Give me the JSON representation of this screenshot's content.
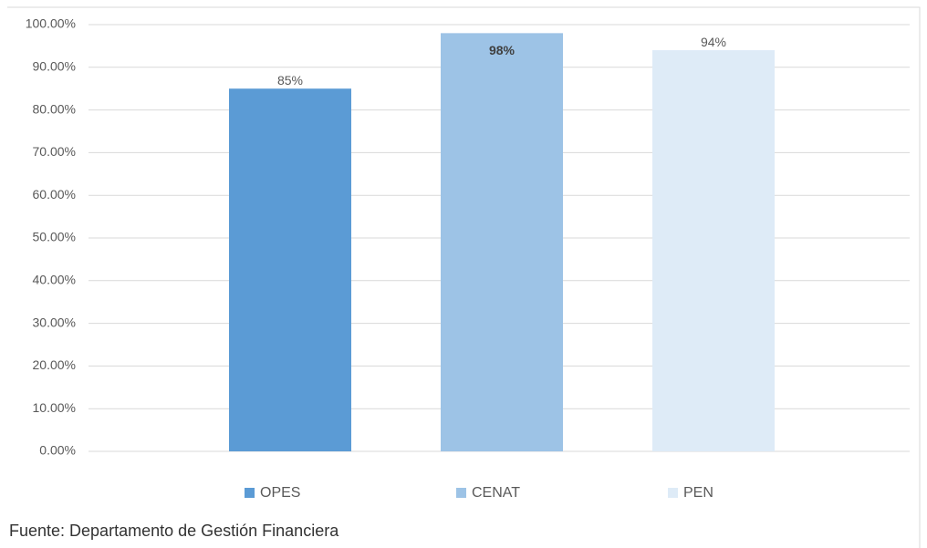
{
  "chart_data": {
    "type": "bar",
    "series": [
      {
        "name": "OPES",
        "color": "#5b9bd5",
        "values": [
          85
        ],
        "value_labels": [
          "85%"
        ]
      },
      {
        "name": "CENAT",
        "color": "#9dc3e6",
        "values": [
          98
        ],
        "value_labels": [
          "98%"
        ]
      },
      {
        "name": "PEN",
        "color": "#deebf7",
        "values": [
          94
        ],
        "value_labels": [
          "94%"
        ]
      }
    ],
    "ylim": [
      0,
      100
    ],
    "yticks": [
      {
        "value": 0,
        "label": "0.00%"
      },
      {
        "value": 10,
        "label": "10.00%"
      },
      {
        "value": 20,
        "label": "20.00%"
      },
      {
        "value": 30,
        "label": "30.00%"
      },
      {
        "value": 40,
        "label": "40.00%"
      },
      {
        "value": 50,
        "label": "50.00%"
      },
      {
        "value": 60,
        "label": "60.00%"
      },
      {
        "value": 70,
        "label": "70.00%"
      },
      {
        "value": 80,
        "label": "80.00%"
      },
      {
        "value": 90,
        "label": "90.00%"
      },
      {
        "value": 100,
        "label": "100.00%"
      }
    ],
    "grid": true,
    "legend": "bottom",
    "source": "Fuente: Departamento de Gestión Financiera"
  }
}
